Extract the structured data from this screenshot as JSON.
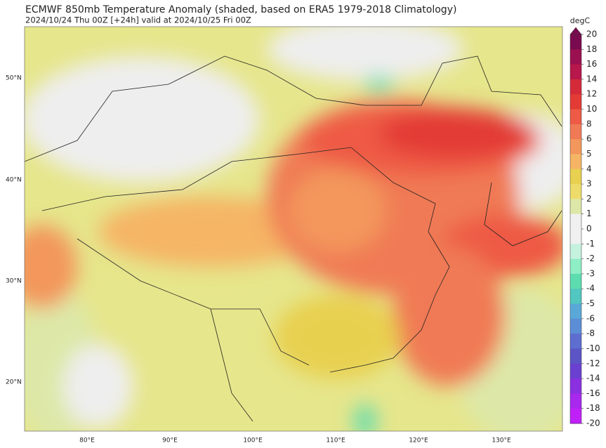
{
  "header": {
    "title": "ECMWF 850mb Temperature Anomaly (shaded, based on ERA5 1979-2018 Climatology)",
    "subtitle": "2024/10/24 Thu 00Z [+24h] valid at 2024/10/25 Fri 00Z"
  },
  "map": {
    "latitude_labels": [
      "50°N",
      "40°N",
      "30°N",
      "20°N"
    ],
    "longitude_labels": [
      "80°E",
      "90°E",
      "100°E",
      "110°E",
      "120°E",
      "130°E"
    ]
  },
  "colorbar": {
    "unit": "degC",
    "levels": [
      20,
      18,
      16,
      14,
      12,
      10,
      8,
      6,
      5,
      4,
      3,
      2,
      1,
      0,
      -1,
      -2,
      -3,
      -4,
      -5,
      -6,
      -8,
      -10,
      -12,
      -14,
      -16,
      -18,
      -20
    ],
    "colors": [
      "#7a0a4f",
      "#9b1050",
      "#b8174b",
      "#d42a3a",
      "#e33a35",
      "#ee5a45",
      "#f07a55",
      "#f3975c",
      "#f5b565",
      "#e8d050",
      "#eddc6a",
      "#dde8a8",
      "#f0f0f0",
      "#f0f0f0",
      "#c5f2de",
      "#8eeec5",
      "#5ddcb0",
      "#52c6c0",
      "#5aa8d8",
      "#5c8ed6",
      "#5d6ed0",
      "#5b55c5",
      "#6a40d0",
      "#8a30e0",
      "#a828ee",
      "#c020f8"
    ]
  }
}
